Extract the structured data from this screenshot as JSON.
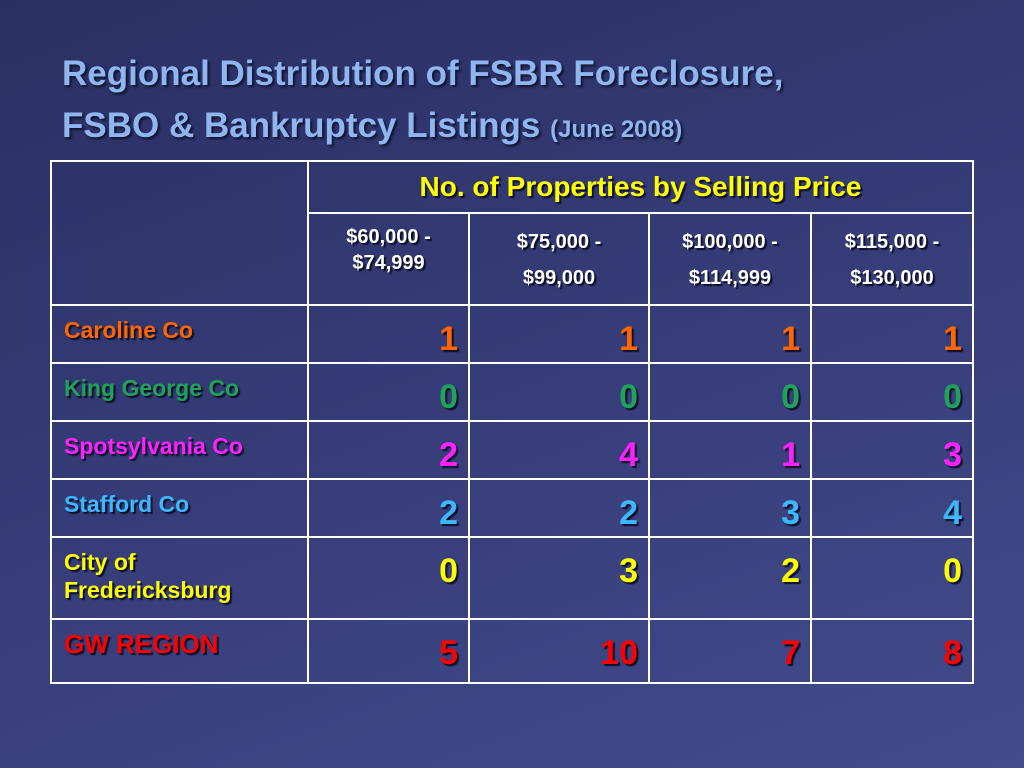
{
  "slide": {
    "title_line1": "Regional Distribution of FSBR Foreclosure,",
    "title_line2": "FSBO & Bankruptcy Listings",
    "title_sub": "(June 2008)"
  },
  "table": {
    "header": "No. of Properties by Selling Price",
    "ranges": [
      {
        "top": "$60,000 -",
        "bottom": "$74,999"
      },
      {
        "top": "$75,000 -",
        "bottom": "$99,000"
      },
      {
        "top": "$100,000 -",
        "bottom": "$114,999"
      },
      {
        "top": "$115,000 -",
        "bottom": "$130,000"
      }
    ],
    "rows": [
      {
        "label": "Caroline Co",
        "color": "#ff6600",
        "values": [
          "1",
          "1",
          "1",
          "1"
        ]
      },
      {
        "label": "King George Co",
        "color": "#1fa35a",
        "values": [
          "0",
          "0",
          "0",
          "0"
        ]
      },
      {
        "label": "Spotsylvania Co",
        "color": "#ff22ff",
        "values": [
          "2",
          "4",
          "1",
          "3"
        ]
      },
      {
        "label": "Stafford Co",
        "color": "#3cb8ff",
        "values": [
          "2",
          "2",
          "3",
          "4"
        ]
      },
      {
        "label": "City of Fredericksburg",
        "color": "#ffff00",
        "values": [
          "0",
          "3",
          "2",
          "0"
        ]
      },
      {
        "label": "GW REGION",
        "color": "#ff0000",
        "values": [
          "5",
          "10",
          "7",
          "8"
        ]
      }
    ]
  }
}
